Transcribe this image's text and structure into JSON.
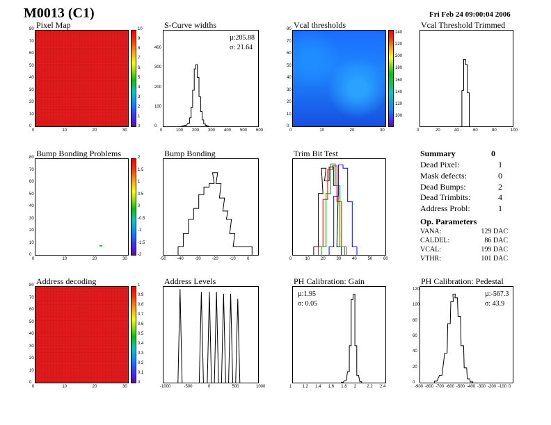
{
  "header": {
    "title": "M0013 (C1)",
    "date": "Fri Feb 24 09:00:04 2006"
  },
  "panels": {
    "pixel_map": {
      "title": "Pixel Map",
      "yticks": [
        "80",
        "70",
        "60",
        "50",
        "40",
        "30",
        "20",
        "10",
        "0"
      ],
      "xticks": [
        "0",
        "10",
        "20",
        "30"
      ],
      "cbar": [
        "10",
        "9",
        "8",
        "7",
        "6",
        "5",
        "4",
        "3",
        "2",
        "1",
        "0"
      ]
    },
    "scurve": {
      "title": "S-Curve widths",
      "mu": "µ:205.88",
      "sigma": "σ: 21.64",
      "yticks": [
        "400",
        "300",
        "200",
        "100",
        "0"
      ],
      "xticks": [
        "0",
        "100",
        "200",
        "300",
        "400",
        "500",
        "600"
      ]
    },
    "vcal_thr": {
      "title": "Vcal thresholds",
      "yticks": [
        "80",
        "70",
        "60",
        "50",
        "40",
        "30",
        "20",
        "10",
        "0"
      ],
      "xticks": [
        "0",
        "10",
        "20",
        "30"
      ],
      "cbar": [
        "240",
        "220",
        "200",
        "180",
        "160",
        "140",
        "120",
        "100"
      ]
    },
    "vcal_trim": {
      "title": "Vcal Threshold Trimmed",
      "xticks": [
        "0",
        "20",
        "40",
        "60",
        "80",
        "100"
      ]
    },
    "bump_problems": {
      "title": "Bump Bonding Problems",
      "yticks": [
        "80",
        "70",
        "60",
        "50",
        "40",
        "30",
        "20",
        "10",
        "0"
      ],
      "xticks": [
        "0",
        "10",
        "20",
        "30"
      ],
      "cbar": [
        "2",
        "1.5",
        "1",
        "0.5",
        "0",
        "-0.5",
        "-1",
        "-1.5",
        "-2"
      ]
    },
    "bump_bonding": {
      "title": "Bump Bonding",
      "xticks": [
        "-50",
        "-40",
        "-30",
        "-20",
        "-10",
        "0"
      ]
    },
    "trim_bit": {
      "title": "Trim Bit Test",
      "xticks": [
        "0",
        "10",
        "20",
        "30",
        "40",
        "50",
        "60"
      ]
    },
    "address_dec": {
      "title": "Address decoding",
      "yticks": [
        "80",
        "70",
        "60",
        "50",
        "40",
        "30",
        "20",
        "10",
        "0"
      ],
      "xticks": [
        "0",
        "10",
        "20",
        "30"
      ],
      "cbar": [
        "1",
        "0.9",
        "0.8",
        "0.7",
        "0.6",
        "0.5",
        "0.4",
        "0.3",
        "0.2",
        "0.1",
        "0"
      ]
    },
    "address_levels": {
      "title": "Address Levels",
      "xticks": [
        "-1000",
        "-500",
        "0",
        "500",
        "1000"
      ]
    },
    "ph_gain": {
      "title": "PH Calibration: Gain",
      "mu": "µ:1.95",
      "sigma": "σ: 0.05",
      "xticks": [
        "1",
        "1.2",
        "1.4",
        "1.6",
        "1.8",
        "2",
        "2.2",
        "2.4"
      ]
    },
    "ph_ped": {
      "title": "PH Calibration: Pedestal",
      "mu": "µ:-567.3",
      "sigma": "σ: 43.9",
      "yticks": [
        "120",
        "100",
        "80",
        "60",
        "40",
        "20",
        "0"
      ],
      "xticks": [
        "-900",
        "-800",
        "-700",
        "-600",
        "-500",
        "-400",
        "-300",
        "-200",
        "-100",
        "0"
      ]
    }
  },
  "summary": {
    "heading": "Summary",
    "heading_value": "0",
    "rows": [
      {
        "label": "Dead Pixel:",
        "value": "1"
      },
      {
        "label": "Mask defects:",
        "value": "0"
      },
      {
        "label": "Dead Bumps:",
        "value": "2"
      },
      {
        "label": "Dead Trimbits:",
        "value": "4"
      },
      {
        "label": "Address Probl:",
        "value": "1"
      }
    ]
  },
  "op_params": {
    "heading": "Op. Parameters",
    "rows": [
      {
        "label": "VANA:",
        "value": "129 DAC"
      },
      {
        "label": "CALDEL:",
        "value": "86 DAC"
      },
      {
        "label": "VCAL:",
        "value": "199 DAC"
      },
      {
        "label": "VTHR:",
        "value": "101 DAC"
      }
    ]
  },
  "colors": {
    "map_red": "#e41a1c",
    "trim_black": "#000000",
    "trim_red": "#ff0000",
    "trim_green": "#00aa00",
    "trim_blue": "#0000ff"
  },
  "chart_data": [
    {
      "type": "heatmap",
      "title": "Pixel Map",
      "xlim": [
        0,
        52
      ],
      "ylim": [
        0,
        80
      ],
      "uniform_value": 10
    },
    {
      "type": "bar",
      "title": "S-Curve widths",
      "xlim": [
        0,
        600
      ],
      "ylim": [
        0,
        450
      ],
      "x": [
        120,
        140,
        160,
        170,
        180,
        190,
        200,
        210,
        220,
        230,
        240,
        250,
        260,
        270,
        280
      ],
      "values": [
        2,
        5,
        15,
        40,
        90,
        170,
        270,
        290,
        230,
        140,
        70,
        30,
        12,
        5,
        2
      ]
    },
    {
      "type": "heatmap",
      "title": "Vcal thresholds",
      "xlim": [
        0,
        52
      ],
      "ylim": [
        0,
        80
      ],
      "zlim": [
        90,
        250
      ]
    },
    {
      "type": "bar",
      "title": "Vcal Threshold Trimmed",
      "xlim": [
        0,
        100
      ],
      "log_y": true,
      "x": [
        46,
        48,
        50,
        52
      ],
      "values": [
        10,
        200,
        120,
        8
      ]
    },
    {
      "type": "heatmap",
      "title": "Bump Bonding Problems",
      "xlim": [
        0,
        52
      ],
      "ylim": [
        0,
        80
      ],
      "zlim": [
        -2,
        2
      ]
    },
    {
      "type": "bar",
      "title": "Bump Bonding",
      "xlim": [
        -50,
        5
      ],
      "log_y": true,
      "x": [
        -40,
        -37,
        -34,
        -31,
        -28,
        -25,
        -22,
        -20,
        -18,
        -16,
        -14,
        -12,
        -10,
        -8,
        -6,
        -4,
        -2,
        0
      ],
      "values": [
        1,
        3,
        10,
        25,
        80,
        150,
        200,
        500,
        200,
        60,
        20,
        10,
        3,
        1,
        1,
        1,
        0,
        1
      ]
    },
    {
      "type": "line",
      "title": "Trim Bit Test",
      "xlim": [
        0,
        60
      ],
      "log_y": true,
      "series": [
        {
          "values_x": [
            15,
            18,
            20,
            22,
            25,
            28,
            30
          ],
          "values": [
            1,
            100,
            900,
            300,
            1000,
            200,
            1
          ]
        },
        {
          "values_x": [
            18,
            21,
            24,
            27,
            30,
            33
          ],
          "values": [
            1,
            60,
            800,
            1100,
            50,
            1
          ]
        },
        {
          "values_x": [
            20,
            23,
            26,
            29,
            32
          ],
          "values": [
            1,
            100,
            1300,
            200,
            1
          ]
        },
        {
          "values_x": [
            25,
            28,
            31,
            34,
            37,
            40
          ],
          "values": [
            1,
            80,
            1200,
            900,
            50,
            1
          ]
        }
      ]
    },
    {
      "type": "heatmap",
      "title": "Address decoding",
      "xlim": [
        0,
        52
      ],
      "ylim": [
        0,
        80
      ],
      "uniform_value": 1
    },
    {
      "type": "bar",
      "title": "Address Levels",
      "xlim": [
        -1000,
        1000
      ],
      "log_y": true,
      "x": [
        -650,
        -200,
        -30,
        120,
        270,
        420,
        570
      ],
      "values": [
        4000,
        3000,
        3000,
        3000,
        2500,
        2500,
        1500
      ]
    },
    {
      "type": "bar",
      "title": "PH Calibration: Gain",
      "xlim": [
        1,
        2.5
      ],
      "x": [
        1.8,
        1.85,
        1.9,
        1.93,
        1.96,
        1.99,
        2.02,
        2.05,
        2.1
      ],
      "values": [
        2,
        10,
        60,
        200,
        450,
        480,
        200,
        40,
        5
      ]
    },
    {
      "type": "line",
      "title": "PH Calibration: Pedestal",
      "xlim": [
        -900,
        0
      ],
      "ylim": [
        0,
        130
      ],
      "x": [
        -750,
        -700,
        -650,
        -620,
        -590,
        -570,
        -550,
        -520,
        -490,
        -460,
        -430,
        -400
      ],
      "values": [
        2,
        10,
        40,
        80,
        110,
        120,
        115,
        90,
        50,
        20,
        5,
        1
      ]
    }
  ]
}
